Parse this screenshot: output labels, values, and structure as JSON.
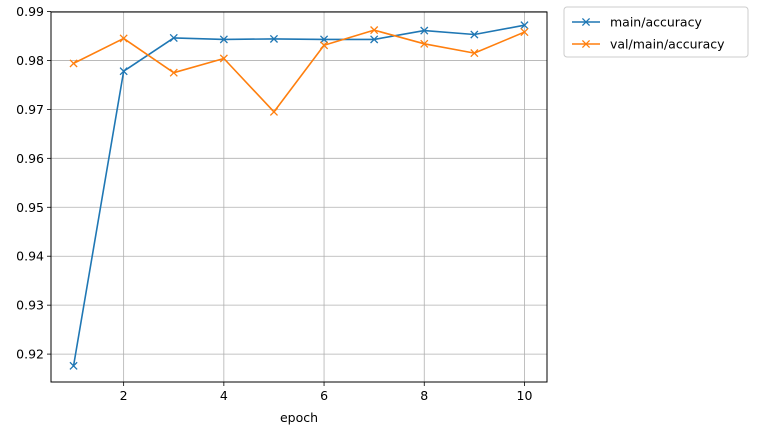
{
  "chart_data": {
    "type": "line",
    "xlabel": "epoch",
    "ylabel": "",
    "title": "",
    "xlim": [
      0.55,
      10.45
    ],
    "ylim": [
      0.9143,
      0.9899
    ],
    "x_ticks": [
      2,
      4,
      6,
      8,
      10
    ],
    "y_ticks": [
      0.92,
      0.93,
      0.94,
      0.95,
      0.96,
      0.97,
      0.98,
      0.99
    ],
    "grid": true,
    "legend_position": "outside-top-right",
    "x": [
      1,
      2,
      3,
      4,
      5,
      6,
      7,
      8,
      9,
      10
    ],
    "series": [
      {
        "name": "main/accuracy",
        "color": "#1f77b4",
        "marker": "x",
        "values": [
          0.9176,
          0.9778,
          0.9846,
          0.9843,
          0.9844,
          0.9843,
          0.9843,
          0.9861,
          0.9853,
          0.9872
        ]
      },
      {
        "name": "val/main/accuracy",
        "color": "#ff7f0e",
        "marker": "x",
        "values": [
          0.9794,
          0.9845,
          0.9775,
          0.9804,
          0.9695,
          0.9831,
          0.9862,
          0.9834,
          0.9815,
          0.9858
        ]
      }
    ]
  }
}
